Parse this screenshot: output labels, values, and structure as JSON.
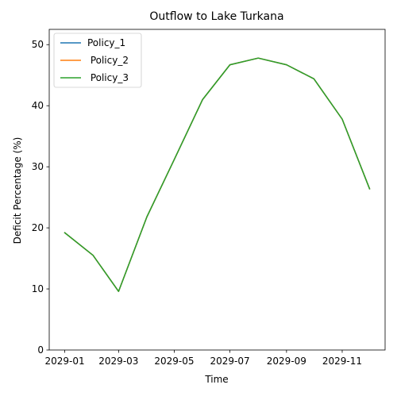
{
  "chart_data": {
    "type": "line",
    "title": "Outflow to Lake Turkana",
    "xlabel": "Time",
    "ylabel": "Deficit Percentage (%)",
    "x": [
      "2029-01-01",
      "2029-02-01",
      "2029-03-01",
      "2029-04-01",
      "2029-05-01",
      "2029-06-01",
      "2029-07-01",
      "2029-08-01",
      "2029-09-01",
      "2029-10-01",
      "2029-11-01",
      "2029-12-01"
    ],
    "series": [
      {
        "name": "Policy_1",
        "color": "#1f77b4",
        "values": [
          19.2,
          15.5,
          9.6,
          21.8,
          31.2,
          41.0,
          46.7,
          47.8,
          46.7,
          44.4,
          37.8,
          26.4
        ]
      },
      {
        "name": " Policy_2",
        "color": "#ff7f0e",
        "values": [
          19.2,
          15.5,
          9.6,
          21.8,
          31.2,
          41.0,
          46.7,
          47.8,
          46.7,
          44.4,
          37.8,
          26.4
        ]
      },
      {
        "name": " Policy_3",
        "color": "#2ca02c",
        "values": [
          19.2,
          15.5,
          9.6,
          21.8,
          31.2,
          41.0,
          46.7,
          47.8,
          46.7,
          44.4,
          37.8,
          26.4
        ]
      }
    ],
    "xlim": [
      "2028-12-15",
      "2029-12-18"
    ],
    "ylim": [
      0,
      52.5
    ],
    "x_ticks": [
      {
        "date": "2029-01-01",
        "label": "2029-01"
      },
      {
        "date": "2029-03-01",
        "label": "2029-03"
      },
      {
        "date": "2029-05-01",
        "label": "2029-05"
      },
      {
        "date": "2029-07-01",
        "label": "2029-07"
      },
      {
        "date": "2029-09-01",
        "label": "2029-09"
      },
      {
        "date": "2029-11-01",
        "label": "2029-11"
      }
    ],
    "y_ticks": [
      0,
      10,
      20,
      30,
      40,
      50
    ],
    "grid": false,
    "legend_position": "top-left"
  }
}
